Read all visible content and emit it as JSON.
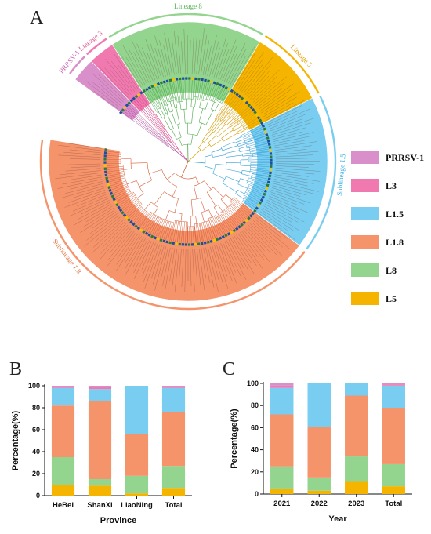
{
  "panel_labels": {
    "a": "A",
    "b": "B",
    "c": "C"
  },
  "colors": {
    "PRRSV-1": "#d98fca",
    "L3": "#f07ab0",
    "L1.5": "#78cdf0",
    "L1.8": "#f5936b",
    "L8": "#93d48f",
    "L5": "#f5b400"
  },
  "tree": {
    "clade_labels": [
      {
        "text": "Lineage 8",
        "color": "#5cb85c"
      },
      {
        "text": "Lineage 5",
        "color": "#e0a000"
      },
      {
        "text": "Sublineage 1.5",
        "color": "#3bb0e6"
      },
      {
        "text": "Sublineage 1.8",
        "color": "#e07a4a"
      },
      {
        "text": "PRRSV-1",
        "color": "#cc66b8"
      },
      {
        "text": "Lineage 3",
        "color": "#e0558f"
      }
    ],
    "sectors": [
      {
        "name": "PRRSV-1",
        "color": "#d98fca",
        "from": -54,
        "to": -44
      },
      {
        "name": "L3",
        "color": "#f07ab0",
        "from": -44,
        "to": -33
      },
      {
        "name": "L8",
        "color": "#93d48f",
        "from": -33,
        "to": 31
      },
      {
        "name": "L5",
        "color": "#f5b400",
        "from": 31,
        "to": 63
      },
      {
        "name": "L1.5",
        "color": "#78cdf0",
        "from": 63,
        "to": 127
      },
      {
        "name": "L1.8",
        "color": "#f5936b",
        "from": 127,
        "to": 279
      }
    ]
  },
  "legend": [
    {
      "label": "PRRSV-1",
      "color": "#d98fca"
    },
    {
      "label": "L3",
      "color": "#f07ab0"
    },
    {
      "label": "L1.5",
      "color": "#78cdf0"
    },
    {
      "label": "L1.8",
      "color": "#f5936b"
    },
    {
      "label": "L8",
      "color": "#93d48f"
    },
    {
      "label": "L5",
      "color": "#f5b400"
    }
  ],
  "chart_data": [
    {
      "type": "bar",
      "stacked": true,
      "panel": "B",
      "categories": [
        "HeBei",
        "ShanXi",
        "LiaoNing",
        "Total"
      ],
      "xlabel": "Province",
      "ylabel": "Percentage(%)",
      "ylim": [
        0,
        100
      ],
      "yticks": [
        0,
        20,
        40,
        60,
        80,
        100
      ],
      "series": [
        {
          "name": "L5",
          "color": "#f5b400",
          "values": [
            10,
            9,
            2,
            7
          ]
        },
        {
          "name": "L8",
          "color": "#93d48f",
          "values": [
            25,
            6,
            16,
            20
          ]
        },
        {
          "name": "L1.8",
          "color": "#f5936b",
          "values": [
            47,
            71,
            38,
            49
          ]
        },
        {
          "name": "L1.5",
          "color": "#78cdf0",
          "values": [
            16,
            11,
            44,
            22
          ]
        },
        {
          "name": "L3",
          "color": "#f07ab0",
          "values": [
            1,
            2,
            0,
            1
          ]
        },
        {
          "name": "PRRSV-1",
          "color": "#d98fca",
          "values": [
            1,
            1,
            0,
            1
          ]
        }
      ]
    },
    {
      "type": "bar",
      "stacked": true,
      "panel": "C",
      "categories": [
        "2021",
        "2022",
        "2023",
        "Total"
      ],
      "xlabel": "Year",
      "ylabel": "Percentage(%)",
      "ylim": [
        0,
        100
      ],
      "yticks": [
        0,
        20,
        40,
        60,
        80,
        100
      ],
      "series": [
        {
          "name": "L5",
          "color": "#f5b400",
          "values": [
            5,
            3,
            11,
            7
          ]
        },
        {
          "name": "L8",
          "color": "#93d48f",
          "values": [
            20,
            12,
            23,
            20
          ]
        },
        {
          "name": "L1.8",
          "color": "#f5936b",
          "values": [
            47,
            46,
            55,
            51
          ]
        },
        {
          "name": "L1.5",
          "color": "#78cdf0",
          "values": [
            24,
            39,
            11,
            20
          ]
        },
        {
          "name": "L3",
          "color": "#f07ab0",
          "values": [
            2,
            0,
            0,
            1
          ]
        },
        {
          "name": "PRRSV-1",
          "color": "#d98fca",
          "values": [
            2,
            0,
            0,
            1
          ]
        }
      ]
    }
  ]
}
